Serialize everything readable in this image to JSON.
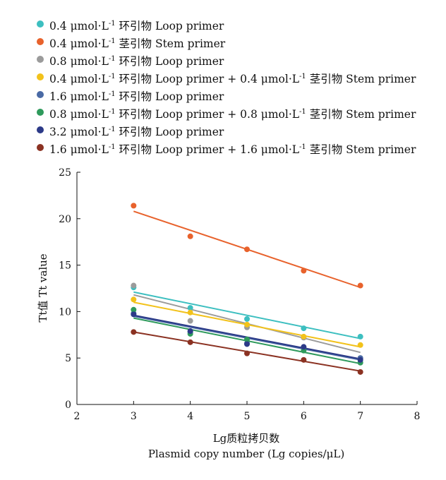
{
  "chart_data": {
    "type": "scatter",
    "xlabel": "Lg质粒拷贝数",
    "xlabel_en": "Plasmid copy number (Lg copies/μL)",
    "ylabel": "Tt值 Tt value",
    "xlim": [
      2,
      8
    ],
    "ylim": [
      0,
      25
    ],
    "x_ticks": [
      "2",
      "3",
      "4",
      "5",
      "6",
      "7",
      "8"
    ],
    "y_ticks": [
      "0",
      "5",
      "10",
      "15",
      "20",
      "25"
    ],
    "legend_position": "top-left",
    "x": [
      3,
      4,
      5,
      6,
      7
    ],
    "series": [
      {
        "name_parts": [
          "0.4 μmol·L",
          "-1",
          " 环引物 Loop primer"
        ],
        "color": "#3dbfc0",
        "values": [
          12.6,
          10.4,
          9.2,
          8.2,
          7.3
        ],
        "fit": [
          12.1,
          7.1
        ]
      },
      {
        "name_parts": [
          "0.4 μmol·L",
          "-1",
          " 茎引物 Stem primer"
        ],
        "color": "#e8622c",
        "values": [
          21.4,
          18.1,
          16.7,
          14.4,
          12.8
        ],
        "fit": [
          20.8,
          12.6
        ]
      },
      {
        "name_parts": [
          "0.8 μmol·L",
          "-1",
          " 环引物 Loop primer"
        ],
        "color": "#9b9b9b",
        "values": [
          12.8,
          9.0,
          8.3,
          7.2,
          5.0
        ],
        "fit": [
          11.8,
          5.6
        ]
      },
      {
        "name_parts": [
          "0.4 μmol·L",
          "-1",
          " 环引物 Loop primer + 0.4 μmol·L",
          "-1",
          " 茎引物 Stem primer"
        ],
        "color": "#f2c21b",
        "values": [
          11.3,
          9.9,
          8.6,
          7.3,
          6.4
        ],
        "fit": [
          11.0,
          6.2
        ]
      },
      {
        "name_parts": [
          "1.6 μmol·L",
          "-1",
          " 环引物 Loop primer"
        ],
        "color": "#4a6aa5",
        "values": [
          9.8,
          7.8,
          6.6,
          6.1,
          5.0
        ],
        "fit": [
          9.5,
          4.8
        ]
      },
      {
        "name_parts": [
          "0.8 μmol·L",
          "-1",
          " 环引物 Loop primer + 0.8 μmol·L",
          "-1",
          " 茎引物 Stem primer"
        ],
        "color": "#2e9a5c",
        "values": [
          10.2,
          7.6,
          7.0,
          5.8,
          4.5
        ],
        "fit": [
          9.3,
          4.4
        ]
      },
      {
        "name_parts": [
          "3.2 μmol·L",
          "-1",
          " 环引物 Loop primer"
        ],
        "color": "#2c3a88",
        "values": [
          9.7,
          7.9,
          6.5,
          6.2,
          4.8
        ],
        "fit": [
          9.6,
          4.9
        ]
      },
      {
        "name_parts": [
          "1.6 μmol·L",
          "-1",
          " 环引物 Loop primer + 1.6 μmol·L",
          "-1",
          " 茎引物 Stem primer"
        ],
        "color": "#8b3222",
        "values": [
          7.8,
          6.7,
          5.5,
          4.8,
          3.5
        ],
        "fit": [
          7.8,
          3.6
        ]
      }
    ]
  }
}
